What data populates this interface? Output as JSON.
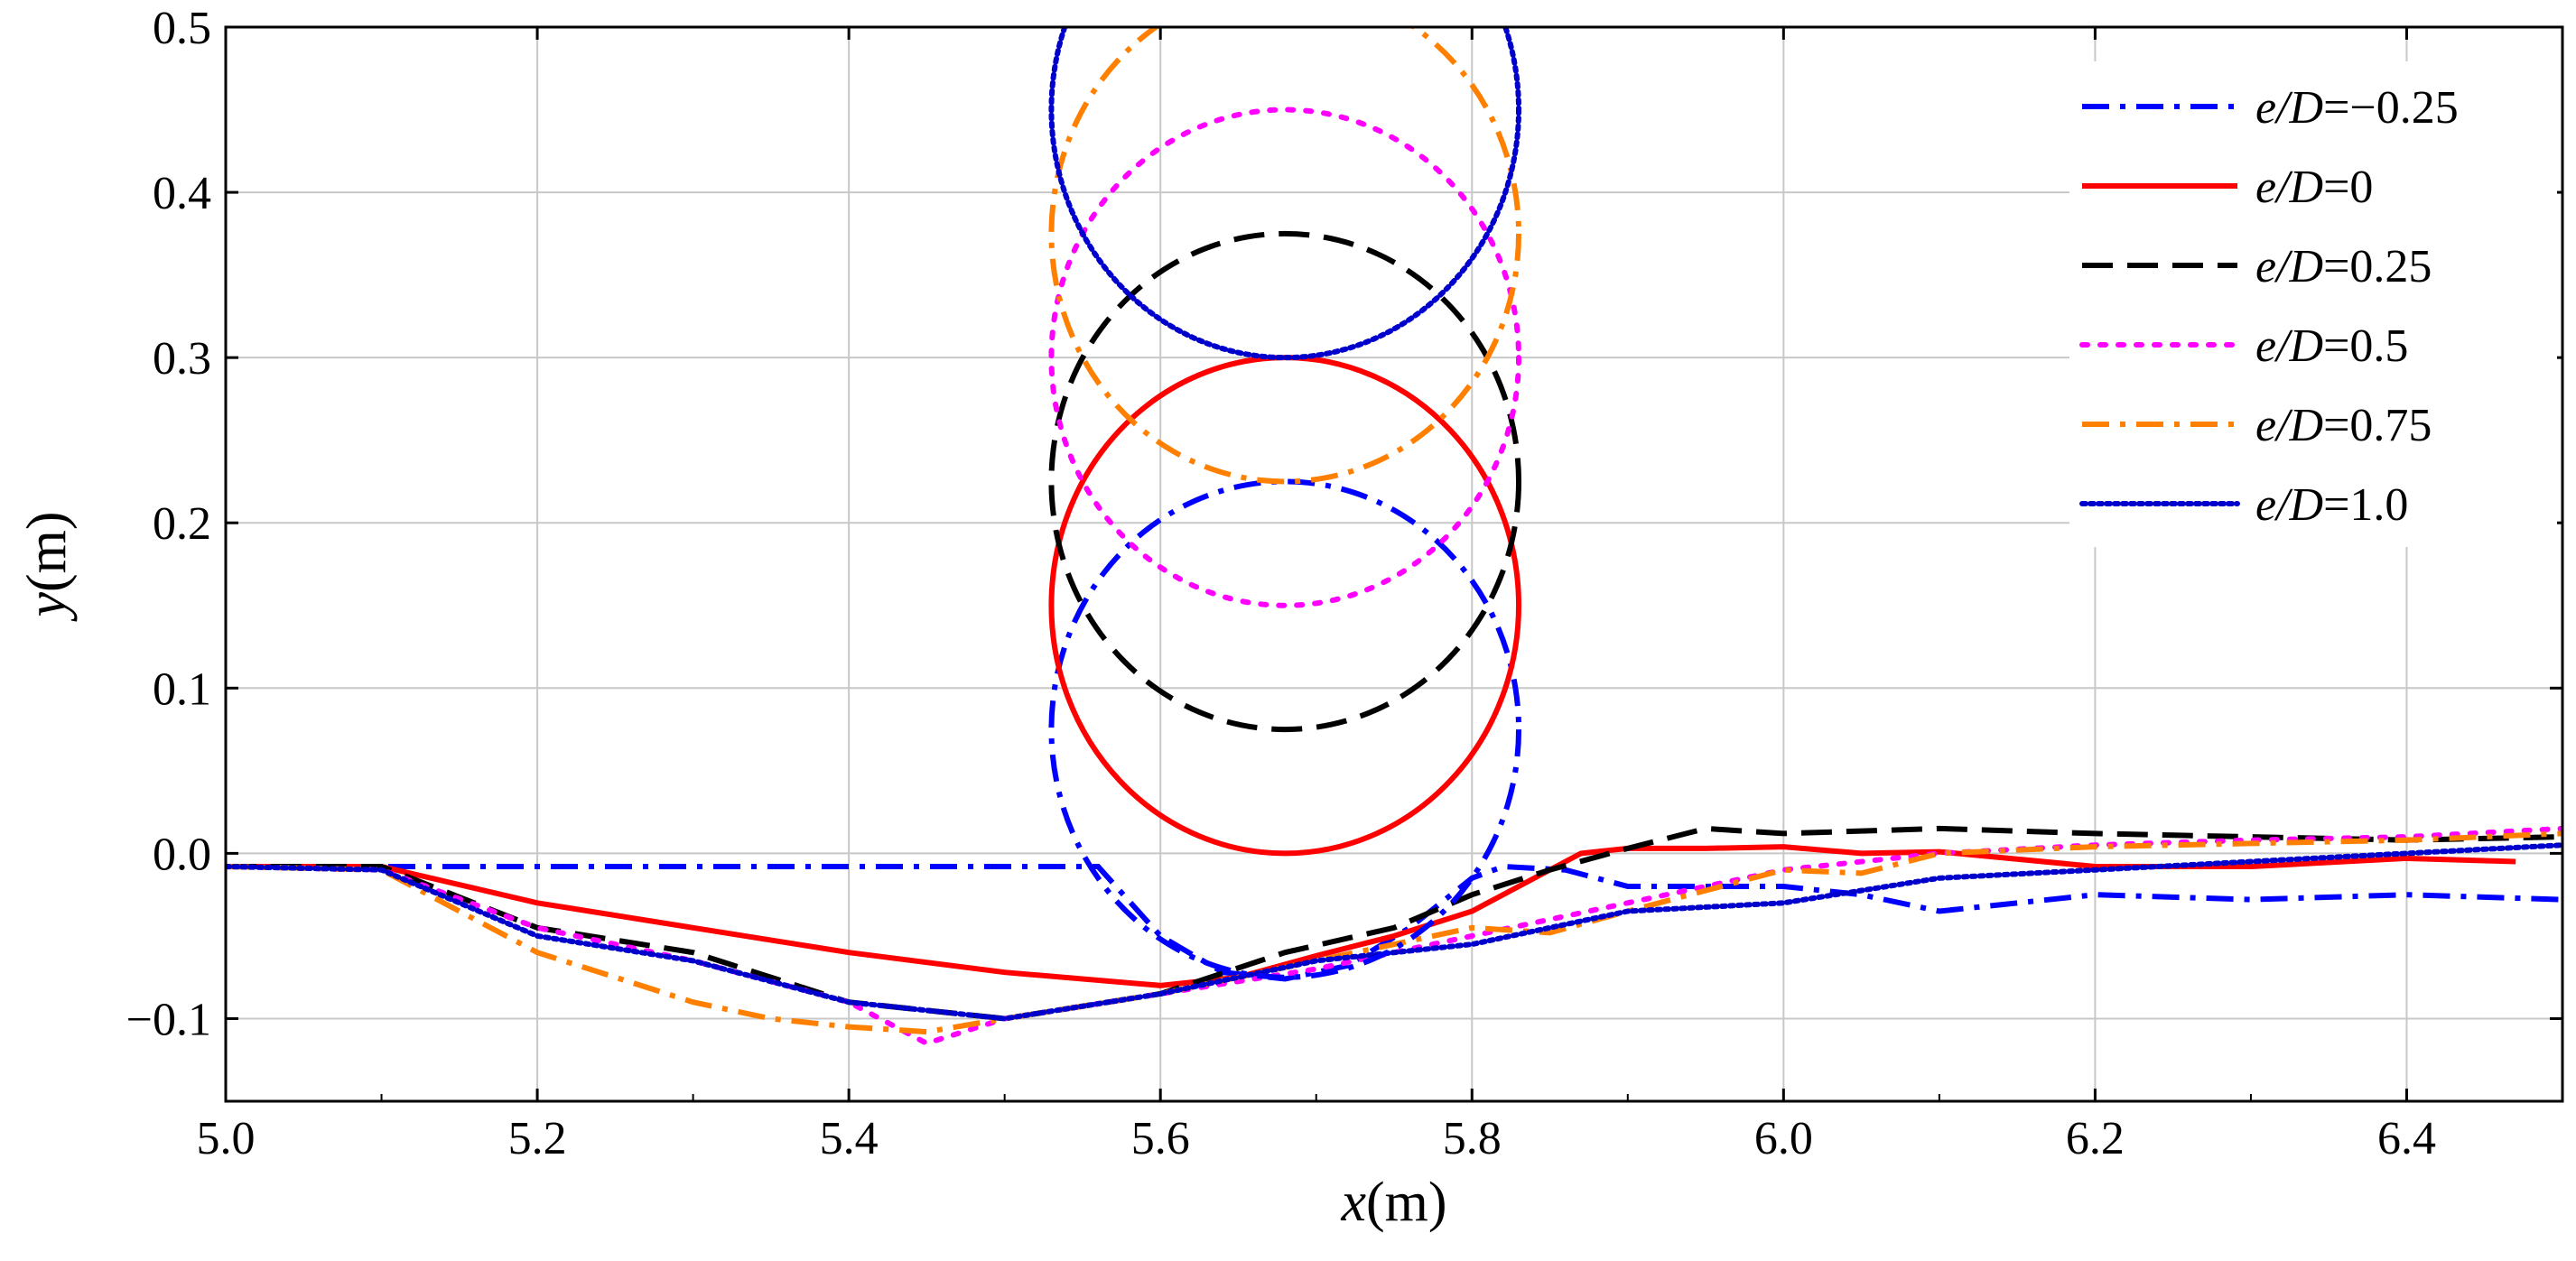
{
  "chart_data": {
    "type": "line",
    "title": "",
    "xlabel": {
      "var": "x",
      "unit": "(m)"
    },
    "ylabel": {
      "var": "y",
      "unit": "(m)"
    },
    "xlim": [
      5.0,
      6.5
    ],
    "ylim": [
      -0.15,
      0.5
    ],
    "xticks": [
      5.0,
      5.2,
      5.4,
      5.6,
      5.8,
      6.0,
      6.2,
      6.4
    ],
    "xtick_labels": [
      "5.0",
      "5.2",
      "5.4",
      "5.6",
      "5.8",
      "6.0",
      "6.2",
      "6.4"
    ],
    "yticks": [
      -0.1,
      0.0,
      0.1,
      0.2,
      0.3,
      0.4,
      0.5
    ],
    "ytick_labels": [
      "−0.1",
      "0.0",
      "0.1",
      "0.2",
      "0.3",
      "0.4",
      "0.5"
    ],
    "grid": true,
    "legend_position": "top-right",
    "pipe": {
      "center_x": 5.68,
      "radius": 0.15
    },
    "series": [
      {
        "name": "e/D=−0.25",
        "legend_italic": "e/D",
        "legend_rest": "=−0.25",
        "color": "#0000ff",
        "dash": "dashdot",
        "pipe_center_y": 0.075,
        "x": [
          5.0,
          5.1,
          5.3,
          5.5,
          5.56,
          5.6,
          5.64,
          5.68,
          5.72,
          5.76,
          5.8,
          5.82,
          5.86,
          5.9,
          6.0,
          6.05,
          6.1,
          6.2,
          6.3,
          6.4,
          6.5
        ],
        "y": [
          -0.008,
          -0.008,
          -0.008,
          -0.008,
          -0.008,
          -0.05,
          -0.072,
          -0.076,
          -0.068,
          -0.045,
          -0.015,
          -0.008,
          -0.01,
          -0.02,
          -0.02,
          -0.025,
          -0.035,
          -0.025,
          -0.028,
          -0.025,
          -0.028
        ]
      },
      {
        "name": "e/D=0",
        "legend_italic": "e/D",
        "legend_rest": "=0",
        "color": "#ff0000",
        "dash": "solid",
        "pipe_center_y": 0.15,
        "x": [
          5.0,
          5.1,
          5.2,
          5.3,
          5.4,
          5.5,
          5.6,
          5.65,
          5.7,
          5.75,
          5.8,
          5.83,
          5.87,
          5.9,
          5.95,
          6.0,
          6.05,
          6.1,
          6.2,
          6.3,
          6.4,
          6.47
        ],
        "y": [
          -0.008,
          -0.008,
          -0.03,
          -0.045,
          -0.06,
          -0.072,
          -0.08,
          -0.075,
          -0.062,
          -0.05,
          -0.035,
          -0.02,
          0.0,
          0.003,
          0.003,
          0.004,
          0.0,
          0.001,
          -0.008,
          -0.008,
          -0.003,
          -0.005
        ]
      },
      {
        "name": "e/D=0.25",
        "legend_italic": "e/D",
        "legend_rest": "=0.25",
        "color": "#000000",
        "dash": "dashed",
        "pipe_center_y": 0.225,
        "x": [
          5.0,
          5.1,
          5.2,
          5.3,
          5.4,
          5.5,
          5.6,
          5.68,
          5.75,
          5.8,
          5.85,
          5.9,
          5.95,
          6.0,
          6.1,
          6.2,
          6.3,
          6.4,
          6.5
        ],
        "y": [
          -0.008,
          -0.008,
          -0.045,
          -0.06,
          -0.09,
          -0.1,
          -0.085,
          -0.06,
          -0.045,
          -0.025,
          -0.01,
          0.003,
          0.015,
          0.012,
          0.015,
          0.012,
          0.01,
          0.008,
          0.01
        ]
      },
      {
        "name": "e/D=0.5",
        "legend_italic": "e/D",
        "legend_rest": "=0.5",
        "color": "#ff00ff",
        "dash": "dotted",
        "pipe_center_y": 0.3,
        "x": [
          5.0,
          5.1,
          5.2,
          5.3,
          5.4,
          5.45,
          5.5,
          5.6,
          5.7,
          5.8,
          5.9,
          6.0,
          6.1,
          6.2,
          6.3,
          6.4,
          6.5
        ],
        "y": [
          -0.008,
          -0.01,
          -0.045,
          -0.065,
          -0.09,
          -0.115,
          -0.1,
          -0.085,
          -0.07,
          -0.05,
          -0.03,
          -0.01,
          0.0,
          0.005,
          0.008,
          0.01,
          0.015
        ]
      },
      {
        "name": "e/D=0.75",
        "legend_italic": "e/D",
        "legend_rest": "=0.75",
        "color": "#ff8000",
        "dash": "dashdot",
        "pipe_center_y": 0.375,
        "x": [
          5.0,
          5.1,
          5.2,
          5.3,
          5.35,
          5.4,
          5.45,
          5.5,
          5.6,
          5.7,
          5.8,
          5.85,
          5.9,
          6.0,
          6.05,
          6.1,
          6.2,
          6.3,
          6.4,
          6.5
        ],
        "y": [
          -0.008,
          -0.01,
          -0.06,
          -0.09,
          -0.1,
          -0.105,
          -0.108,
          -0.1,
          -0.085,
          -0.065,
          -0.045,
          -0.048,
          -0.035,
          -0.01,
          -0.012,
          0.0,
          0.004,
          0.006,
          0.008,
          0.012
        ]
      },
      {
        "name": "e/D=1.0",
        "legend_italic": "e/D",
        "legend_rest": "=1.0",
        "color": "#0000cc",
        "dash": "densedot",
        "pipe_center_y": 0.45,
        "x": [
          5.0,
          5.1,
          5.2,
          5.3,
          5.4,
          5.5,
          5.6,
          5.7,
          5.8,
          5.9,
          6.0,
          6.1,
          6.2,
          6.3,
          6.4,
          6.5
        ],
        "y": [
          -0.008,
          -0.01,
          -0.05,
          -0.065,
          -0.09,
          -0.1,
          -0.085,
          -0.065,
          -0.055,
          -0.035,
          -0.03,
          -0.015,
          -0.01,
          -0.005,
          0.0,
          0.005
        ]
      }
    ]
  }
}
